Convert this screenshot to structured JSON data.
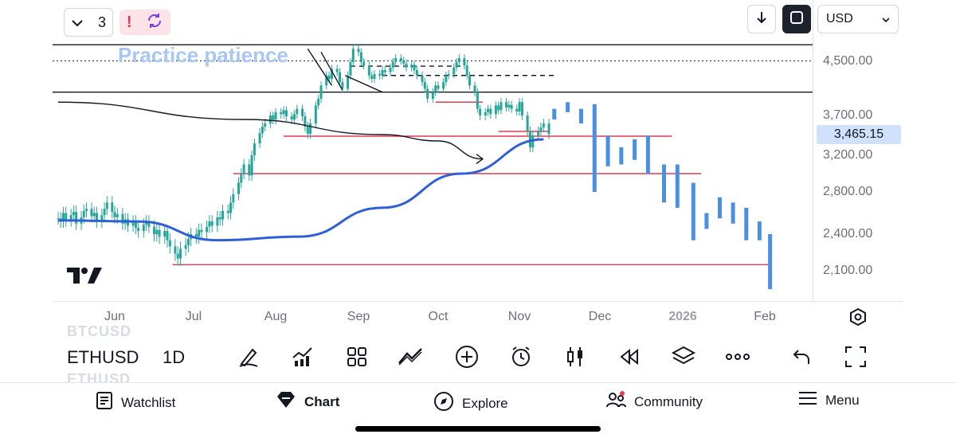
{
  "header": {
    "interval_count": "3",
    "currency": "USD"
  },
  "chart": {
    "annotation_text": "Practice patience",
    "price_labels": [
      "4,500.00",
      "3,700.00",
      "3,200.00",
      "2,800.00",
      "2,400.00",
      "2,100.00"
    ],
    "current_price": "3,465.15",
    "time_labels": [
      "Jun",
      "Jul",
      "Aug",
      "Sep",
      "Oct",
      "Nov",
      "Dec",
      "2026",
      "Feb"
    ],
    "colors": {
      "up": "#26a69a",
      "down": "#26a69a",
      "ma": "#2f5fd8",
      "support": "#e53950",
      "projection": "#4a90e2"
    }
  },
  "symbol_bar": {
    "ghost_above": "BTCUSD",
    "symbol": "ETHUSD",
    "interval": "1D",
    "ghost_below": "ETHUSD"
  },
  "toolbar": {
    "tools": [
      "draw-pen-icon",
      "indicators-icon",
      "templates-icon",
      "compare-icon",
      "add-icon",
      "alert-clock-icon",
      "candle-type-icon",
      "replay-icon",
      "layers-icon",
      "more-icon",
      "undo-icon",
      "fullscreen-icon"
    ]
  },
  "bottom_nav": {
    "watchlist": "Watchlist",
    "chart": "Chart",
    "explore": "Explore",
    "community": "Community",
    "menu": "Menu"
  },
  "chart_data": {
    "type": "candlestick",
    "x_start": "2025-05-10",
    "x_end": "2026-02-05",
    "y_min": 1900,
    "y_max": 5000,
    "closes": [
      2550,
      2520,
      2600,
      2530,
      2580,
      2610,
      2500,
      2560,
      2620,
      2640,
      2570,
      2600,
      2520,
      2580,
      2640,
      2700,
      2610,
      2560,
      2590,
      2500,
      2540,
      2480,
      2520,
      2460,
      2430,
      2490,
      2520,
      2470,
      2400,
      2440,
      2380,
      2430,
      2350,
      2300,
      2240,
      2200,
      2280,
      2310,
      2360,
      2400,
      2380,
      2440,
      2420,
      2470,
      2520,
      2480,
      2560,
      2540,
      2620,
      2600,
      2700,
      2780,
      2900,
      3000,
      3100,
      2980,
      3200,
      3350,
      3480,
      3560,
      3600,
      3700,
      3650,
      3750,
      3720,
      3780,
      3690,
      3650,
      3720,
      3800,
      3690,
      3560,
      3470,
      3600,
      3850,
      3950,
      4150,
      4300,
      4250,
      4400,
      4350,
      4200,
      4100,
      4300,
      4500,
      4700,
      4650,
      4500,
      4450,
      4300,
      4250,
      4320,
      4300,
      4380,
      4350,
      4420,
      4500,
      4560,
      4520,
      4480,
      4420,
      4460,
      4380,
      4300,
      4200,
      4100,
      3950,
      4050,
      4150,
      4100,
      4200,
      4300,
      4320,
      4420,
      4500,
      4560,
      4450,
      4300,
      4150,
      4050,
      3800,
      3700,
      3750,
      3800,
      3720,
      3850,
      3780,
      3900,
      3820,
      3860,
      3800,
      3760,
      3900,
      3700,
      3500,
      3300,
      3450,
      3500,
      3550,
      3600,
      3465
    ],
    "moving_average_200": [
      {
        "x": "2025-05-10",
        "y": 2530
      },
      {
        "x": "2025-06-10",
        "y": 2520
      },
      {
        "x": "2025-07-10",
        "y": 2350
      },
      {
        "x": "2025-08-10",
        "y": 2380
      },
      {
        "x": "2025-09-10",
        "y": 2650
      },
      {
        "x": "2025-10-10",
        "y": 3000
      },
      {
        "x": "2025-11-10",
        "y": 3400
      }
    ],
    "black_curve": [
      {
        "x": "2025-05-10",
        "y": 3900
      },
      {
        "x": "2025-07-20",
        "y": 3650
      },
      {
        "x": "2025-09-10",
        "y": 3460
      },
      {
        "x": "2025-10-01",
        "y": 3380
      },
      {
        "x": "2025-10-18",
        "y": 3160
      }
    ],
    "horizontal_black_lines": [
      4760,
      4050
    ],
    "dotted_line": 4520,
    "dashed_levels": [
      4440,
      4300
    ],
    "support_lines": [
      {
        "y": 3900,
        "from": "2025-09-30",
        "to": "2025-10-18"
      },
      {
        "y": 3500,
        "from": "2025-10-24",
        "to": "2025-11-12"
      },
      {
        "y": 3440,
        "from": "2025-08-04",
        "to": "2025-12-28"
      },
      {
        "y": 3000,
        "from": "2025-07-16",
        "to": "2026-01-08"
      },
      {
        "y": 2150,
        "from": "2025-06-23",
        "to": "2026-02-03"
      }
    ],
    "projected_bars": [
      {
        "x": "2025-11-14",
        "o": 3800,
        "c": 3650
      },
      {
        "x": "2025-11-19",
        "o": 3900,
        "c": 3750
      },
      {
        "x": "2025-11-24",
        "o": 3800,
        "c": 3600
      },
      {
        "x": "2025-11-29",
        "o": 3870,
        "c": 2800
      },
      {
        "x": "2025-12-04",
        "o": 3450,
        "c": 3080
      },
      {
        "x": "2025-12-09",
        "o": 3300,
        "c": 3100
      },
      {
        "x": "2025-12-14",
        "o": 3400,
        "c": 3150
      },
      {
        "x": "2025-12-19",
        "o": 3450,
        "c": 3000
      },
      {
        "x": "2025-12-25",
        "o": 3100,
        "c": 2700
      },
      {
        "x": "2025-12-30",
        "o": 3100,
        "c": 2650
      },
      {
        "x": "2026-01-05",
        "o": 2900,
        "c": 2350
      },
      {
        "x": "2026-01-10",
        "o": 2600,
        "c": 2450
      },
      {
        "x": "2026-01-15",
        "o": 2750,
        "c": 2550
      },
      {
        "x": "2026-01-20",
        "o": 2700,
        "c": 2500
      },
      {
        "x": "2026-01-25",
        "o": 2650,
        "c": 2350
      },
      {
        "x": "2026-01-30",
        "o": 2520,
        "c": 2350
      },
      {
        "x": "2026-02-03",
        "o": 2400,
        "c": 1950
      }
    ]
  }
}
